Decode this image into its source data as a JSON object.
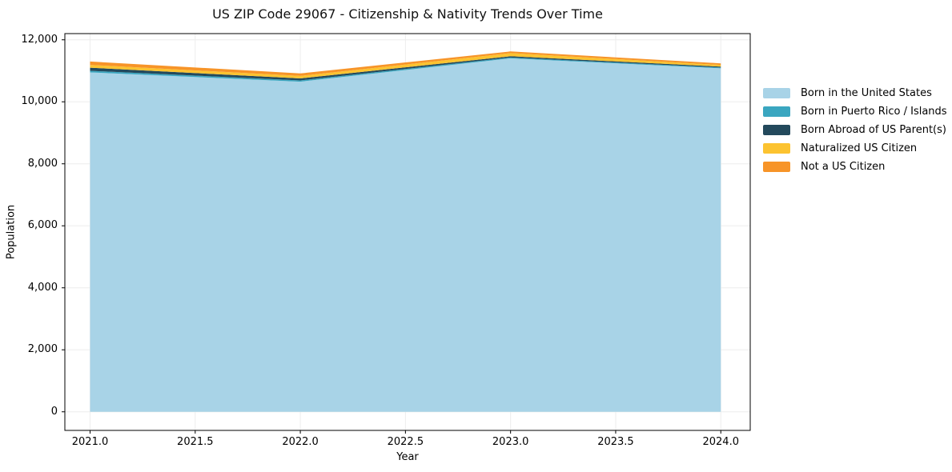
{
  "chart_data": {
    "type": "area",
    "stacked": true,
    "title": "US ZIP Code 29067 - Citizenship & Nativity Trends Over Time",
    "xlabel": "Year",
    "ylabel": "Population",
    "x": [
      2021,
      2022,
      2023,
      2024
    ],
    "series": [
      {
        "name": "Born in the United States",
        "color": "#a8d3e7",
        "values": [
          10950,
          10650,
          11400,
          11080
        ]
      },
      {
        "name": "Born in Puerto Rico / Islands",
        "color": "#3aa6c0",
        "values": [
          50,
          40,
          30,
          25
        ]
      },
      {
        "name": "Born Abroad of US Parent(s)",
        "color": "#23495c",
        "values": [
          100,
          65,
          40,
          30
        ]
      },
      {
        "name": "Naturalized US Citizen",
        "color": "#fcc330",
        "values": [
          90,
          80,
          100,
          55
        ]
      },
      {
        "name": "Not a US Citizen",
        "color": "#f79428",
        "values": [
          110,
          80,
          55,
          50
        ]
      }
    ],
    "xlim": [
      2020.88,
      2024.14
    ],
    "ylim": [
      -600,
      12200
    ],
    "x_ticks": [
      2021.0,
      2021.5,
      2022.0,
      2022.5,
      2023.0,
      2023.5,
      2024.0
    ],
    "x_tick_labels": [
      "2021.0",
      "2021.5",
      "2022.0",
      "2022.5",
      "2023.0",
      "2023.5",
      "2024.0"
    ],
    "y_ticks": [
      0,
      2000,
      4000,
      6000,
      8000,
      10000,
      12000
    ],
    "y_tick_labels": [
      "0",
      "2,000",
      "4,000",
      "6,000",
      "8,000",
      "10,000",
      "12,000"
    ],
    "grid": true,
    "grid_color": "#ededed",
    "spine_color": "#000000",
    "legend_position": "right"
  }
}
